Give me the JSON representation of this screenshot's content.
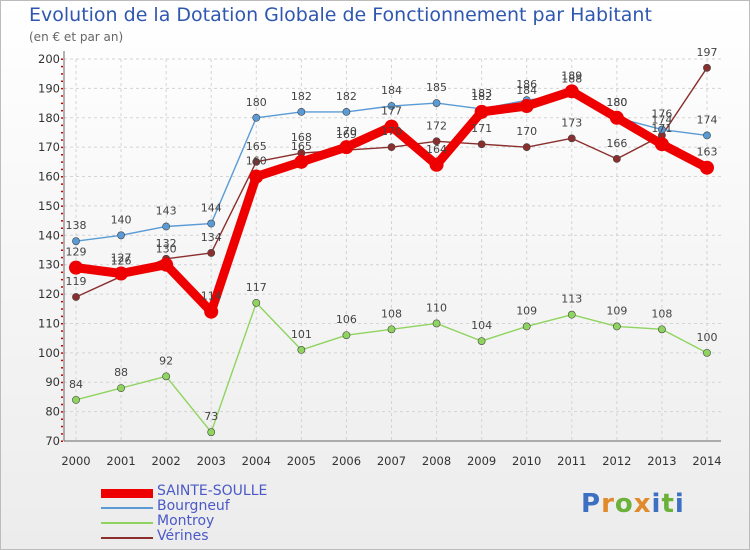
{
  "chart_data": {
    "type": "line",
    "title": "Evolution de la Dotation Globale de Fonctionnement par Habitant",
    "subtitle": "(en € et par an)",
    "xlabel": "",
    "ylabel": "",
    "ylim": [
      70,
      200
    ],
    "yticks": [
      "70",
      "80",
      "90",
      "100",
      "110",
      "120",
      "130",
      "140",
      "150",
      "160",
      "170",
      "180",
      "190",
      "200"
    ],
    "categories": [
      "2000",
      "2001",
      "2002",
      "2003",
      "2004",
      "2005",
      "2006",
      "2007",
      "2008",
      "2009",
      "2010",
      "2011",
      "2012",
      "2013",
      "2014"
    ],
    "grid": true,
    "legend_position": "bottom-left",
    "series": [
      {
        "name": "Vérines",
        "color": "#8b2e2e",
        "values": [
          119,
          126,
          132,
          134,
          165,
          168,
          169,
          170,
          172,
          171,
          170,
          173,
          166,
          174,
          197
        ],
        "labels": [
          "119",
          "126",
          "132",
          "134",
          "165",
          "168",
          "169",
          "170",
          "172",
          "171",
          "170",
          "173",
          "166",
          "174",
          "197"
        ]
      },
      {
        "name": "Montroy",
        "color": "#8fd45f",
        "values": [
          84,
          88,
          92,
          73,
          117,
          101,
          106,
          108,
          110,
          104,
          109,
          113,
          109,
          108,
          100
        ],
        "labels": [
          "84",
          "88",
          "92",
          "73",
          "117",
          "101",
          "106",
          "108",
          "110",
          "104",
          "109",
          "113",
          "109",
          "108",
          "100"
        ]
      },
      {
        "name": "Bourgneuf",
        "color": "#5b9bd5",
        "values": [
          138,
          140,
          143,
          144,
          180,
          182,
          182,
          184,
          185,
          183,
          186,
          188,
          180,
          176,
          174
        ],
        "labels": [
          "138",
          "140",
          "143",
          "144",
          "180",
          "182",
          "182",
          "184",
          "185",
          "183",
          "186",
          "188",
          "180",
          "176",
          "174"
        ]
      },
      {
        "name": "SAINTE-SOULLE",
        "color": "#ee0000",
        "values": [
          129,
          127,
          130,
          114,
          160,
          165,
          170,
          177,
          164,
          182,
          184,
          189,
          180,
          171,
          163
        ],
        "labels": [
          "129",
          "127",
          "130",
          "114",
          "160",
          "165",
          "170",
          "177",
          "164",
          "182",
          "184",
          "189",
          "180",
          "171",
          "163"
        ]
      }
    ]
  },
  "legend": {
    "items": [
      {
        "name": "SAINTE-SOULLE",
        "color": "#ee0000",
        "weight": 9
      },
      {
        "name": "Bourgneuf",
        "color": "#5b9bd5",
        "weight": 2
      },
      {
        "name": "Montroy",
        "color": "#8fd45f",
        "weight": 2
      },
      {
        "name": "Vérines",
        "color": "#8b2e2e",
        "weight": 2
      }
    ]
  },
  "logo": {
    "letters": [
      {
        "ch": "P",
        "color": "#3d6fc2"
      },
      {
        "ch": "r",
        "color": "#e08a2b"
      },
      {
        "ch": "o",
        "color": "#6bb13a"
      },
      {
        "ch": "x",
        "color": "#e08a2b"
      },
      {
        "ch": "i",
        "color": "#3d6fc2"
      },
      {
        "ch": "t",
        "color": "#6bb13a"
      },
      {
        "ch": "i",
        "color": "#3d6fc2"
      }
    ]
  }
}
